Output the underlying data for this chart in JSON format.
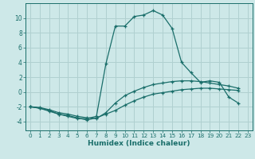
{
  "bg_color": "#cde8e8",
  "grid_color": "#b0d0d0",
  "line_color": "#1a6e6a",
  "xlabel": "Humidex (Indice chaleur)",
  "xlim": [
    -0.5,
    23.5
  ],
  "ylim": [
    -5.2,
    12.0
  ],
  "yticks": [
    -4,
    -2,
    0,
    2,
    4,
    6,
    8,
    10
  ],
  "xticks": [
    0,
    1,
    2,
    3,
    4,
    5,
    6,
    7,
    8,
    9,
    10,
    11,
    12,
    13,
    14,
    15,
    16,
    17,
    18,
    19,
    20,
    21,
    22,
    23
  ],
  "line1_x": [
    0,
    1,
    2,
    3,
    4,
    5,
    6,
    7,
    8,
    9,
    10,
    11,
    12,
    13,
    14,
    15,
    16,
    17,
    18,
    19,
    20,
    21,
    22
  ],
  "line1_y": [
    -2.0,
    -2.2,
    -2.5,
    -3.0,
    -3.2,
    -3.5,
    -3.8,
    -3.5,
    -3.0,
    -2.5,
    -1.8,
    -1.2,
    -0.7,
    -0.3,
    -0.1,
    0.1,
    0.3,
    0.4,
    0.5,
    0.5,
    0.4,
    0.3,
    0.2
  ],
  "line2_x": [
    0,
    1,
    2,
    3,
    4,
    5,
    6,
    7,
    8,
    9,
    10,
    11,
    12,
    13,
    14,
    15,
    16,
    17,
    18,
    19,
    20,
    21,
    22
  ],
  "line2_y": [
    -2.0,
    -2.1,
    -2.4,
    -2.8,
    -3.0,
    -3.3,
    -3.5,
    -3.6,
    -2.8,
    -1.5,
    -0.5,
    0.1,
    0.6,
    1.0,
    1.2,
    1.4,
    1.5,
    1.5,
    1.4,
    1.2,
    1.0,
    0.8,
    0.5
  ],
  "line3_x": [
    0,
    1,
    2,
    3,
    4,
    5,
    6,
    7,
    8,
    9,
    10,
    11,
    12,
    13,
    14,
    15,
    16,
    17,
    18,
    19,
    20,
    21,
    22
  ],
  "line3_y": [
    -2.0,
    -2.2,
    -2.6,
    -3.0,
    -3.3,
    -3.6,
    -3.6,
    -3.3,
    3.8,
    8.9,
    8.9,
    10.2,
    10.4,
    11.0,
    10.4,
    8.6,
    4.0,
    2.6,
    1.3,
    1.5,
    1.3,
    -0.7,
    -1.5
  ]
}
